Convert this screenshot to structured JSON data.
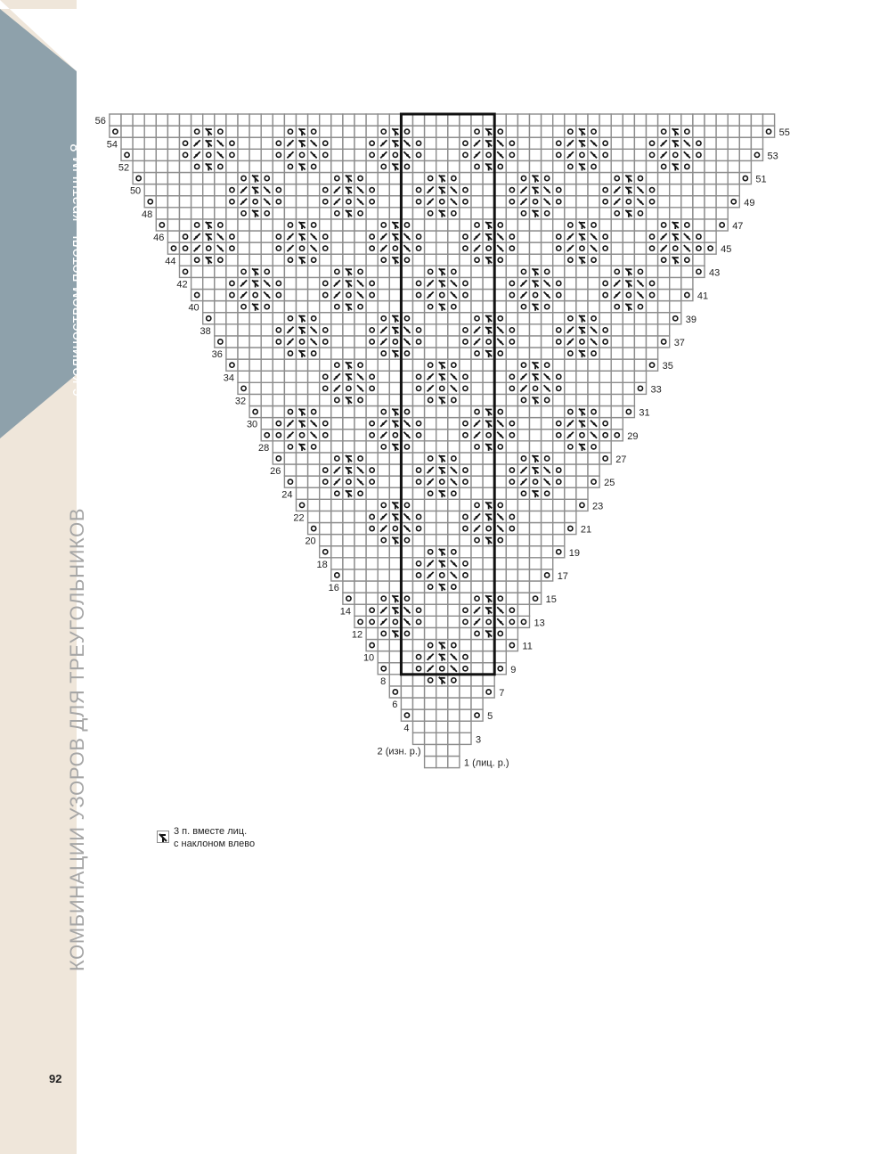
{
  "page_number": "92",
  "side_title": "КОМБИНАЦИИ УЗОРОВ ДЛЯ ТРЕУГОЛЬНИКОВ",
  "side_subtitle": "с количеством петель, кратным 8",
  "colors": {
    "sidebar_band": "#efe6da",
    "sidebar_flag": "#8ea1ab",
    "grid_line": "#8c8c8c",
    "symbol": "#111111"
  },
  "chart": {
    "left_row_labels": [
      "56",
      "54",
      "52",
      "50",
      "48",
      "46",
      "44",
      "42",
      "40",
      "38",
      "36",
      "34",
      "32",
      "30",
      "28",
      "26",
      "24",
      "22",
      "20",
      "18",
      "16",
      "14",
      "12",
      "10",
      "8",
      "6",
      "4",
      "2 (изн. р.)"
    ],
    "right_row_labels": [
      "55",
      "53",
      "51",
      "49",
      "47",
      "45",
      "43",
      "41",
      "39",
      "37",
      "35",
      "33",
      "31",
      "29",
      "27",
      "25",
      "23",
      "21",
      "19",
      "17",
      "15",
      "13",
      "11",
      "9",
      "7",
      "5",
      "3",
      "1 (лиц. р.)"
    ],
    "total_rows": 56,
    "repeat_stitches": 8
  },
  "legend": {
    "icon": "sk2p-left-icon",
    "lines": [
      "3 п. вместе лиц.",
      "с наклоном влево"
    ]
  }
}
